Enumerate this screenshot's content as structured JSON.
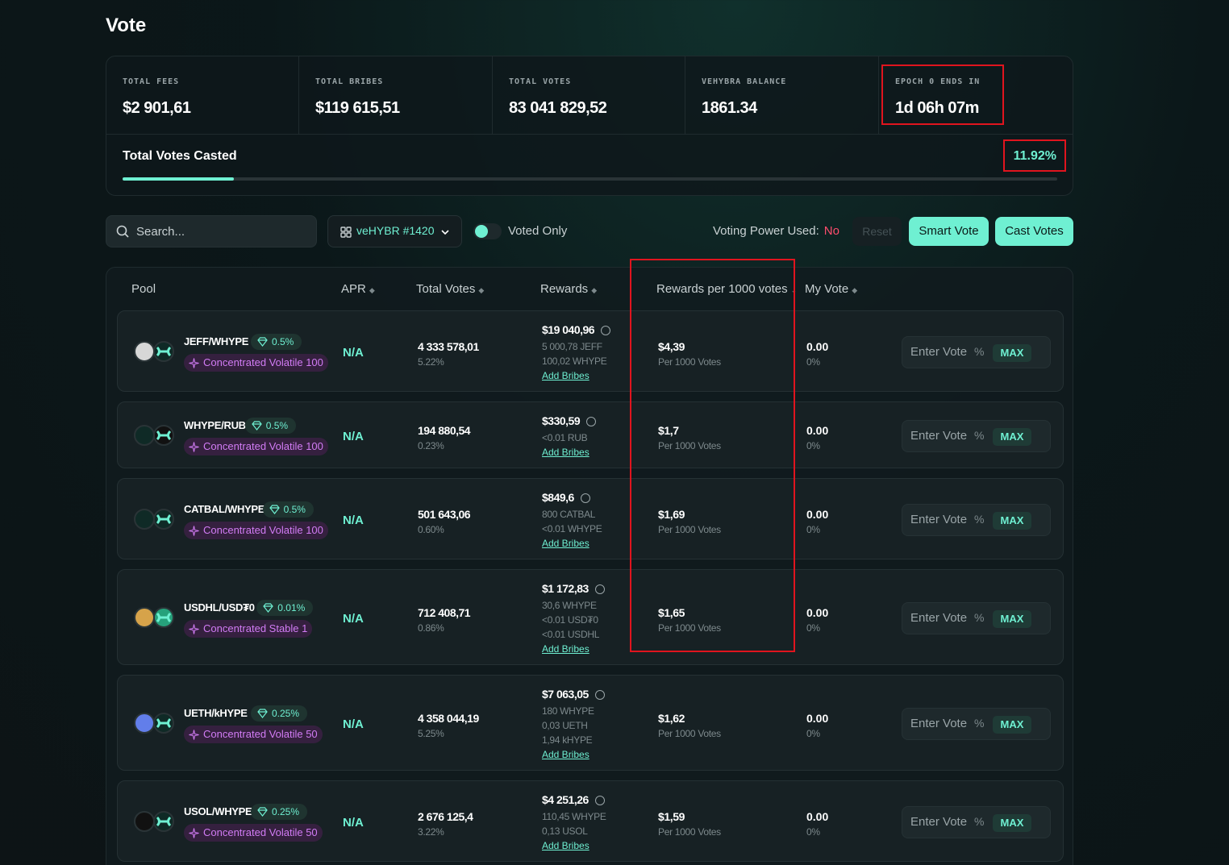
{
  "page": {
    "title": "Vote"
  },
  "stats": [
    {
      "label": "TOTAL FEES",
      "value": "$2 901,61"
    },
    {
      "label": "TOTAL BRIBES",
      "value": "$119 615,51"
    },
    {
      "label": "TOTAL VOTES",
      "value": "83 041 829,52"
    },
    {
      "label": "VEHYBRA BALANCE",
      "value": "1861.34"
    },
    {
      "label": "EPOCH 0 ENDS IN",
      "value": "1d 06h 07m"
    }
  ],
  "votes_casted": {
    "label": "Total Votes Casted",
    "percent_text": "11.92%",
    "progress": 0.1192
  },
  "controls": {
    "search_placeholder": "Search...",
    "nft_label": "veHYBR #1420",
    "voted_only": "Voted Only",
    "voting_power_label": "Voting Power Used:",
    "voting_power_value": "No",
    "reset": "Reset",
    "smart_vote": "Smart Vote",
    "cast_votes": "Cast Votes"
  },
  "table": {
    "headers": {
      "pool": "Pool",
      "apr": "APR",
      "total_votes": "Total Votes",
      "rewards": "Rewards",
      "rpv": "Rewards per 1000 votes",
      "my_vote": "My Vote"
    },
    "rows": [
      {
        "pair": "JEFF/WHYPE",
        "fee": "0.5%",
        "type": "Concentrated Volatile 100",
        "apr": "N/A",
        "total_votes": "4 333 578,01",
        "votes_pct": "5.22%",
        "rewards": "$19 040,96",
        "breakdown": [
          "5 000,78 JEFF",
          "100,02 WHYPE"
        ],
        "add_bribes": "Add Bribes",
        "rpv": "$4,39",
        "rpv_sub": "Per 1000 Votes",
        "my_vote": "0.00",
        "my_vote_pct": "0%",
        "enter_vote": "Enter Vote",
        "pct_sign": "%",
        "max": "MAX"
      },
      {
        "pair": "WHYPE/RUB",
        "fee": "0.5%",
        "type": "Concentrated Volatile 100",
        "apr": "N/A",
        "total_votes": "194 880,54",
        "votes_pct": "0.23%",
        "rewards": "$330,59",
        "breakdown": [
          "<0.01 RUB"
        ],
        "add_bribes": "Add Bribes",
        "rpv": "$1,7",
        "rpv_sub": "Per 1000 Votes",
        "my_vote": "0.00",
        "my_vote_pct": "0%",
        "enter_vote": "Enter Vote",
        "pct_sign": "%",
        "max": "MAX"
      },
      {
        "pair": "CATBAL/WHYPE",
        "fee": "0.5%",
        "type": "Concentrated Volatile 100",
        "apr": "N/A",
        "total_votes": "501 643,06",
        "votes_pct": "0.60%",
        "rewards": "$849,6",
        "breakdown": [
          "800 CATBAL",
          "<0.01 WHYPE"
        ],
        "add_bribes": "Add Bribes",
        "rpv": "$1,69",
        "rpv_sub": "Per 1000 Votes",
        "my_vote": "0.00",
        "my_vote_pct": "0%",
        "enter_vote": "Enter Vote",
        "pct_sign": "%",
        "max": "MAX"
      },
      {
        "pair": "USDHL/USD₮0",
        "fee": "0.01%",
        "type": "Concentrated Stable 1",
        "apr": "N/A",
        "total_votes": "712 408,71",
        "votes_pct": "0.86%",
        "rewards": "$1 172,83",
        "breakdown": [
          "30,6 WHYPE",
          "<0.01 USD₮0",
          "<0.01 USDHL"
        ],
        "add_bribes": "Add Bribes",
        "rpv": "$1,65",
        "rpv_sub": "Per 1000 Votes",
        "my_vote": "0.00",
        "my_vote_pct": "0%",
        "enter_vote": "Enter Vote",
        "pct_sign": "%",
        "max": "MAX"
      },
      {
        "pair": "UETH/kHYPE",
        "fee": "0.25%",
        "type": "Concentrated Volatile 50",
        "apr": "N/A",
        "total_votes": "4 358 044,19",
        "votes_pct": "5.25%",
        "rewards": "$7 063,05",
        "breakdown": [
          "180 WHYPE",
          "0,03 UETH",
          "1,94 kHYPE"
        ],
        "add_bribes": "Add Bribes",
        "rpv": "$1,62",
        "rpv_sub": "Per 1000 Votes",
        "my_vote": "0.00",
        "my_vote_pct": "0%",
        "enter_vote": "Enter Vote",
        "pct_sign": "%",
        "max": "MAX"
      },
      {
        "pair": "USOL/WHYPE",
        "fee": "0.25%",
        "type": "Concentrated Volatile 50",
        "apr": "N/A",
        "total_votes": "2 676 125,4",
        "votes_pct": "3.22%",
        "rewards": "$4 251,26",
        "breakdown": [
          "110,45 WHYPE",
          "0,13 USOL"
        ],
        "add_bribes": "Add Bribes",
        "rpv": "$1,59",
        "rpv_sub": "Per 1000 Votes",
        "my_vote": "0.00",
        "my_vote_pct": "0%",
        "enter_vote": "Enter Vote",
        "pct_sign": "%",
        "max": "MAX"
      }
    ]
  },
  "colors": {
    "accent": "#6ff0d2",
    "danger": "#ff4d6d",
    "highlight_box": "#e0141e",
    "purple": "#d27cf5"
  }
}
